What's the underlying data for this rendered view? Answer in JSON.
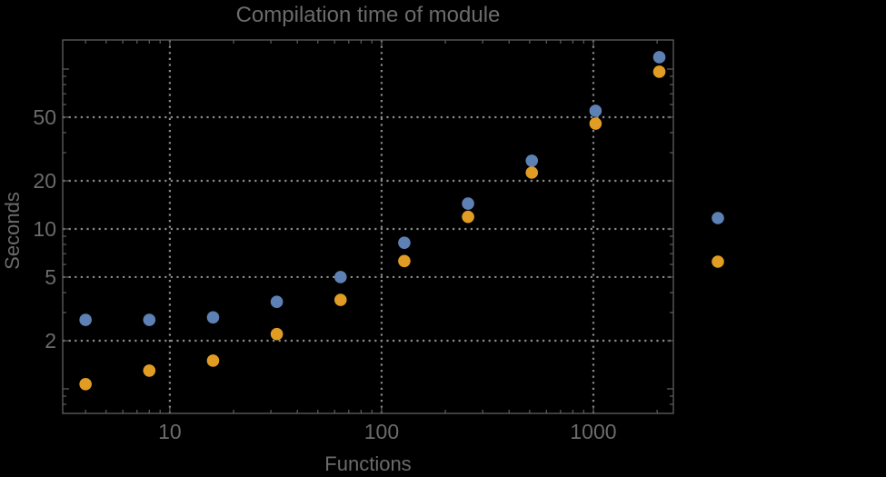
{
  "colors": {
    "background": "#000000",
    "series_blue": "#5e81b5",
    "series_orange": "#e19c24",
    "grid": "#8a8a8a",
    "frame": "#5f5f5f",
    "text": "#6b6b6b"
  },
  "chart_data": {
    "type": "scatter",
    "title": "Compilation time of module",
    "xlabel": "Functions",
    "ylabel": "Seconds",
    "x_scale": "log",
    "y_scale": "log",
    "grid": "dotted",
    "x": [
      4,
      8,
      16,
      32,
      64,
      128,
      256,
      512,
      1024,
      2048
    ],
    "series": [
      {
        "name": "blue",
        "color": "#5e81b5",
        "values": [
          2.7,
          2.7,
          2.8,
          3.5,
          5.0,
          8.2,
          14.4,
          26.7,
          54.8,
          118.6
        ]
      },
      {
        "name": "orange",
        "color": "#e19c24",
        "values": [
          1.07,
          1.3,
          1.5,
          2.2,
          3.6,
          6.3,
          11.9,
          22.5,
          45.6,
          96.2
        ]
      }
    ],
    "xlim": [
      3.12,
      2386
    ],
    "ylim": [
      0.702,
      152
    ],
    "x_tick_values": [
      10,
      100,
      1000
    ],
    "x_tick_labels": [
      "10",
      "100",
      "1000"
    ],
    "y_tick_values": [
      2,
      5,
      10,
      20,
      50
    ],
    "y_tick_labels": [
      "2",
      "5",
      "10",
      "20",
      "50"
    ],
    "y_unlabeled_major_ticks": [
      1,
      100
    ],
    "grid_x": [
      10,
      100,
      1000
    ],
    "grid_y": [
      2,
      5,
      10,
      20,
      50
    ],
    "legend_position": "right-outside",
    "marker_radius": 6.8
  },
  "legend": {
    "markers": [
      {
        "name": "series-1",
        "color": "#5e81b5"
      },
      {
        "name": "series-2",
        "color": "#e19c24"
      }
    ]
  }
}
